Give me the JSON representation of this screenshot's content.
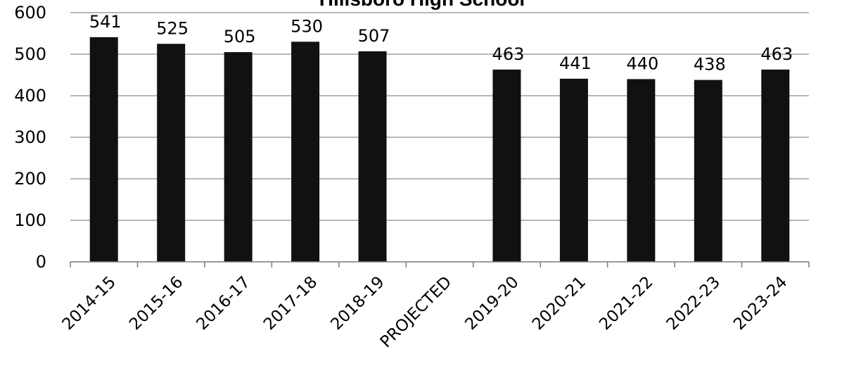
{
  "chart_data": {
    "type": "bar",
    "title": "Hillsboro High School",
    "categories": [
      "2014-15",
      "2015-16",
      "2016-17",
      "2017-18",
      "2018-19",
      "PROJECTED",
      "2019-20",
      "2020-21",
      "2021-22",
      "2022-23",
      "2023-24"
    ],
    "values": [
      541,
      525,
      505,
      530,
      507,
      null,
      463,
      441,
      440,
      438,
      463
    ],
    "data_labels": [
      "541",
      "525",
      "505",
      "530",
      "507",
      "",
      "463",
      "441",
      "440",
      "438",
      "463"
    ],
    "ylim": [
      0,
      600
    ],
    "yticks": [
      0,
      100,
      200,
      300,
      400,
      500,
      600
    ],
    "xlabel": "",
    "ylabel": "",
    "grid": true,
    "legend": "none",
    "bar_color": "#111111"
  }
}
